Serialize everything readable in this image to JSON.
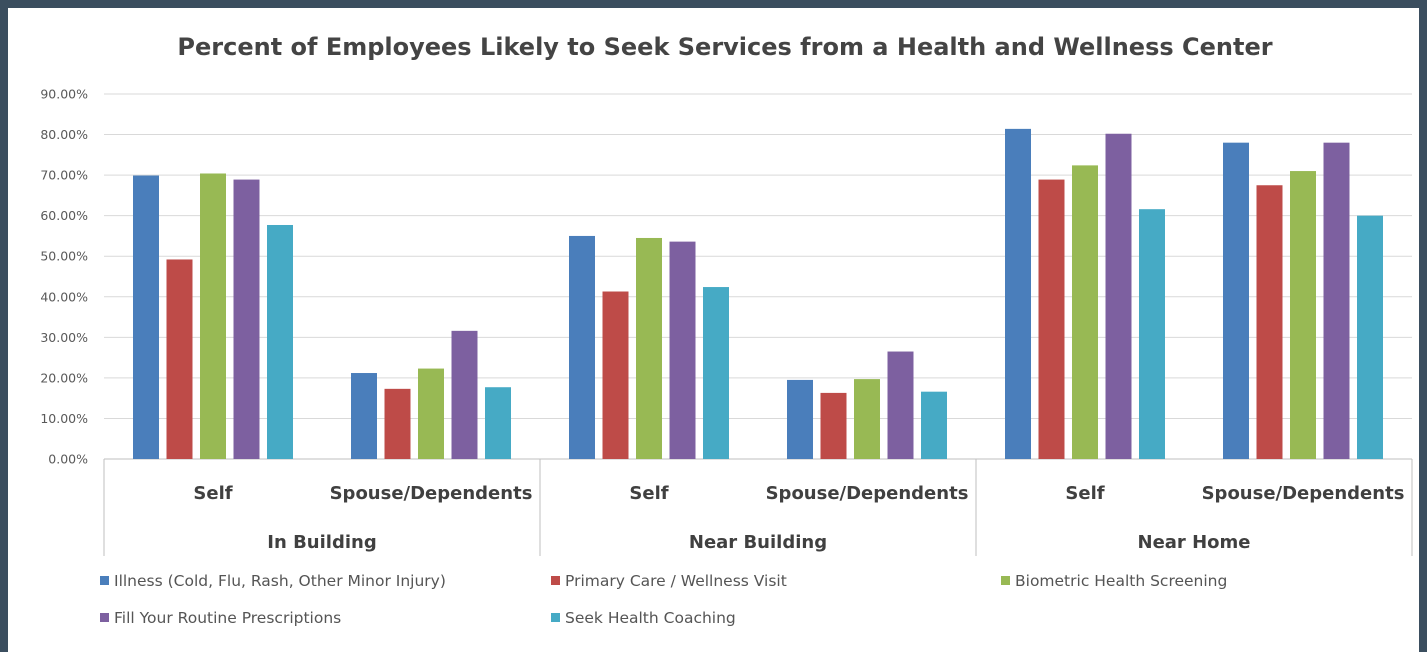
{
  "chart_data": {
    "type": "bar",
    "title": "Percent of Employees Likely to Seek Services from a Health and Wellness Center",
    "ylim": [
      0,
      90
    ],
    "yticks": [
      "0.00%",
      "10.00%",
      "20.00%",
      "30.00%",
      "40.00%",
      "50.00%",
      "60.00%",
      "70.00%",
      "80.00%",
      "90.00%"
    ],
    "grid": true,
    "legend_position": "bottom",
    "groups": [
      "In Building",
      "Near Building",
      "Near Home"
    ],
    "categories": [
      "Self",
      "Spouse/Dependents",
      "Self",
      "Spouse/Dependents",
      "Self",
      "Spouse/Dependents"
    ],
    "series": [
      {
        "name": "Illness (Cold, Flu, Rash, Other Minor Injury)",
        "color": "#4a7ebb",
        "values": [
          69.9,
          21.2,
          55.0,
          19.5,
          81.4,
          78.0
        ]
      },
      {
        "name": "Primary Care / Wellness Visit",
        "color": "#be4b48",
        "values": [
          49.2,
          17.3,
          41.3,
          16.3,
          68.9,
          67.5
        ]
      },
      {
        "name": "Biometric Health Screening",
        "color": "#98b954",
        "values": [
          70.4,
          22.3,
          54.5,
          19.7,
          72.4,
          71.0
        ]
      },
      {
        "name": "Fill Your Routine Prescriptions",
        "color": "#7d60a0",
        "values": [
          68.9,
          31.6,
          53.6,
          26.5,
          80.2,
          78.0
        ]
      },
      {
        "name": "Seek Health Coaching",
        "color": "#46aac5",
        "values": [
          57.7,
          17.7,
          42.4,
          16.6,
          61.6,
          60.0
        ]
      }
    ]
  }
}
